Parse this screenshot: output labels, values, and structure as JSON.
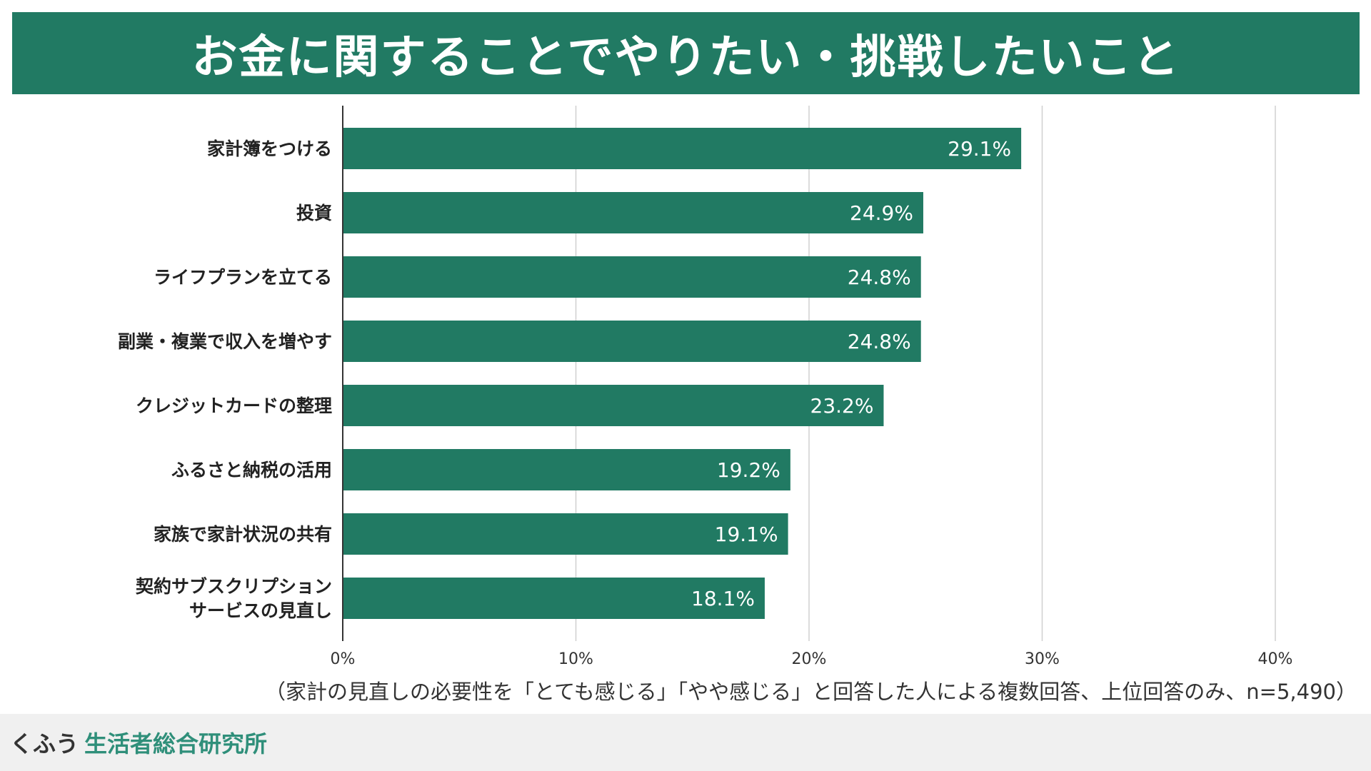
{
  "title": "お金に関することでやりたい・挑戦したいこと",
  "footnote": "（家計の見直しの必要性を「とても感じる」「やや感じる」と回答した人による複数回答、上位回答のみ、n=5,490）",
  "footer": {
    "brand_prefix": "くふう",
    "brand_name": "生活者総合研究所"
  },
  "colors": {
    "bar": "#217a63",
    "grid": "#d0d0d0",
    "axis": "#333333"
  },
  "chart_data": {
    "type": "bar",
    "orientation": "horizontal",
    "categories": [
      [
        "家計簿をつける"
      ],
      [
        "投資"
      ],
      [
        "ライフプランを立てる"
      ],
      [
        "副業・複業で収入を増やす"
      ],
      [
        "クレジットカードの整理"
      ],
      [
        "ふるさと納税の活用"
      ],
      [
        "家族で家計状況の共有"
      ],
      [
        "契約サブスクリプション",
        "サービスの見直し"
      ]
    ],
    "values": [
      29.1,
      24.9,
      24.8,
      24.8,
      23.2,
      19.2,
      19.1,
      18.1
    ],
    "value_labels": [
      "29.1%",
      "24.9%",
      "24.8%",
      "24.8%",
      "23.2%",
      "19.2%",
      "19.1%",
      "18.1%"
    ],
    "xlim": [
      0,
      40
    ],
    "xticks": [
      0,
      10,
      20,
      30,
      40
    ],
    "xtick_labels": [
      "0%",
      "10%",
      "20%",
      "30%",
      "40%"
    ],
    "grid": true,
    "unit": "%"
  }
}
